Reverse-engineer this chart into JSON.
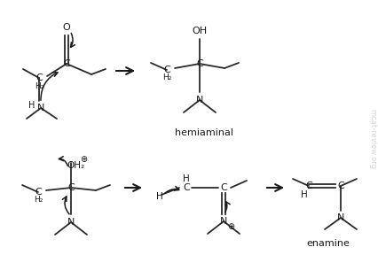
{
  "background": "#ffffff",
  "text_color": "#1a1a1a",
  "watermark_color": "#c8c8c8",
  "watermark_text": "mcat-review.org",
  "label_hemiaminal": "hemiaminal",
  "label_enamine": "enamine",
  "figsize": [
    4.27,
    3.14
  ],
  "dpi": 100,
  "line_color": "#2a2a2a",
  "arrow_color": "#1a1a1a"
}
